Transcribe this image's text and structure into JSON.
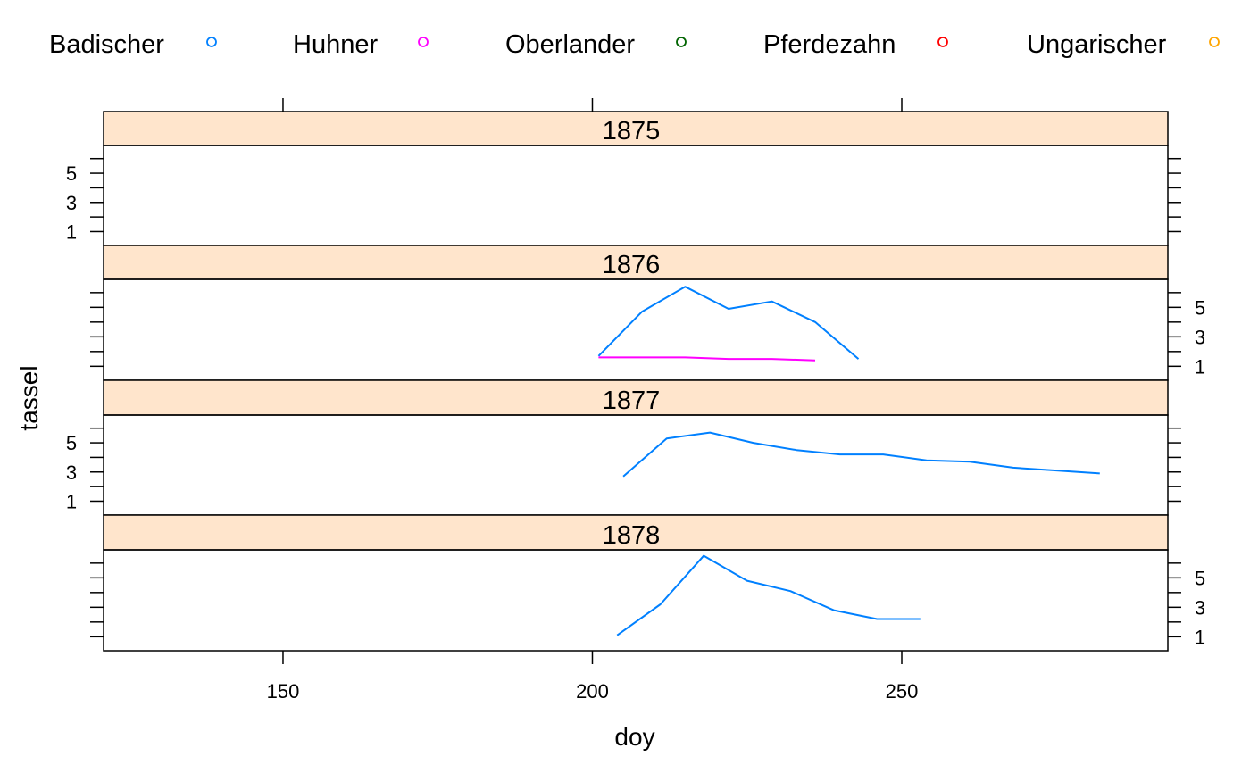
{
  "chart_data": {
    "type": "line",
    "xlabel": "doy",
    "ylabel": "tassel",
    "xlim": [
      121,
      293
    ],
    "ylim": [
      0.05,
      6.9
    ],
    "x_ticks": [
      150,
      200,
      250
    ],
    "y_ticks": [
      1,
      3,
      5
    ],
    "legend_position": "top",
    "legend": [
      {
        "name": "Badischer",
        "color": "#0080ff"
      },
      {
        "name": "Huhner",
        "color": "#ff00ff"
      },
      {
        "name": "Oberlander",
        "color": "#006400"
      },
      {
        "name": "Pferdezahn",
        "color": "#ff0000"
      },
      {
        "name": "Ungarischer",
        "color": "#ffa500"
      }
    ],
    "panels": [
      {
        "strip": "1875",
        "y_axis_side": "left",
        "series": []
      },
      {
        "strip": "1876",
        "y_axis_side": "right",
        "series": [
          {
            "name": "Badischer",
            "color": "#0080ff",
            "x": [
              201,
              208,
              215,
              222,
              229,
              236,
              243
            ],
            "y": [
              1.7,
              4.7,
              6.4,
              4.9,
              5.4,
              4.0,
              1.5
            ]
          },
          {
            "name": "Huhner",
            "color": "#ff00ff",
            "x": [
              201,
              208,
              215,
              222,
              229,
              236
            ],
            "y": [
              1.6,
              1.6,
              1.6,
              1.5,
              1.5,
              1.4
            ]
          }
        ]
      },
      {
        "strip": "1877",
        "y_axis_side": "left",
        "series": [
          {
            "name": "Badischer",
            "color": "#0080ff",
            "x": [
              205,
              212,
              219,
              226,
              233,
              240,
              247,
              254,
              261,
              268,
              275,
              282
            ],
            "y": [
              2.7,
              5.3,
              5.7,
              5.0,
              4.5,
              4.2,
              4.2,
              3.8,
              3.7,
              3.3,
              3.1,
              2.9
            ]
          }
        ]
      },
      {
        "strip": "1878",
        "y_axis_side": "right",
        "series": [
          {
            "name": "Badischer",
            "color": "#0080ff",
            "x": [
              204,
              211,
              218,
              225,
              232,
              239,
              246,
              253
            ],
            "y": [
              1.1,
              3.2,
              6.5,
              4.8,
              4.1,
              2.8,
              2.2,
              2.2
            ]
          }
        ]
      }
    ]
  }
}
